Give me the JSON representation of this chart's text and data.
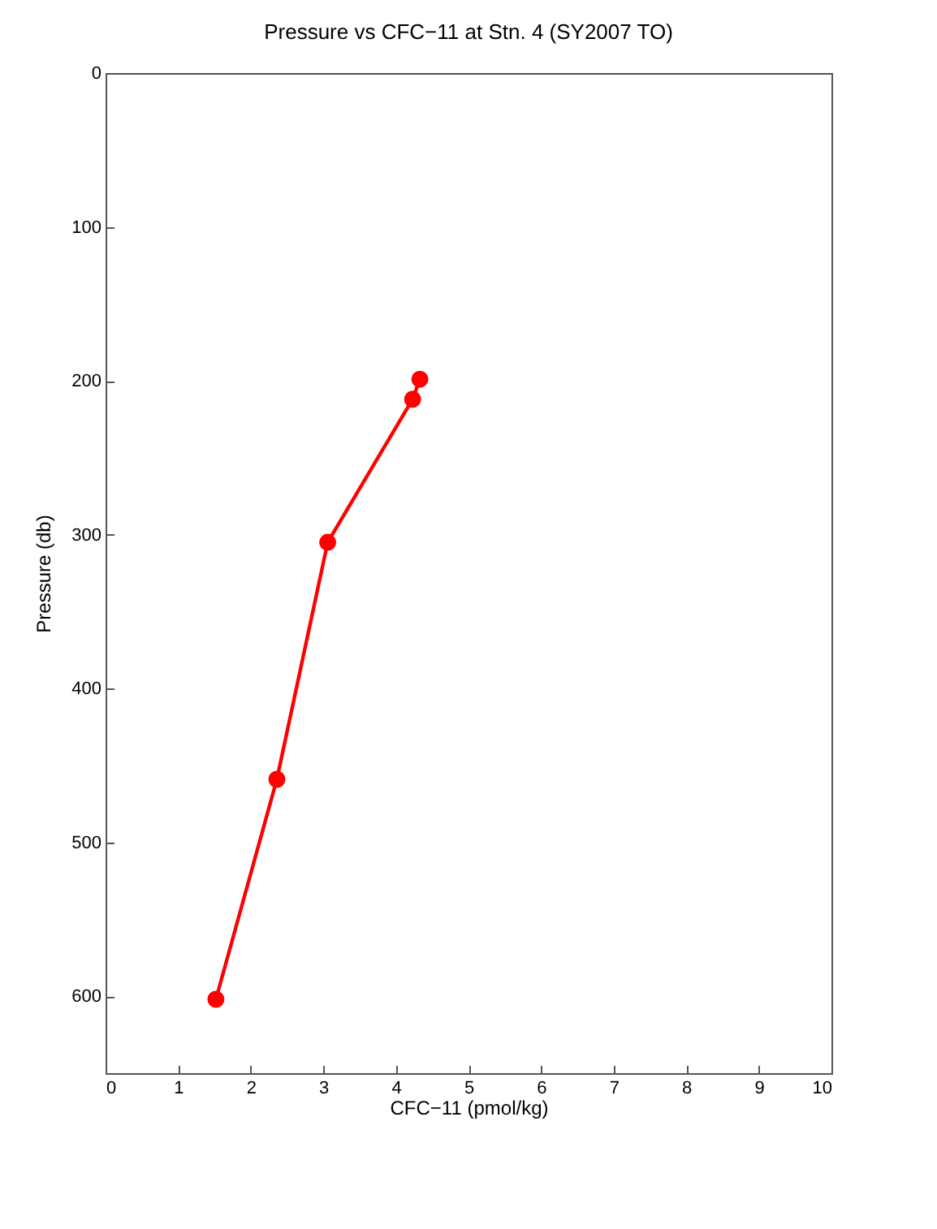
{
  "chart_data": {
    "type": "line",
    "title": "Pressure vs CFC−11 at Stn. 4 (SY2007 TO)",
    "xlabel": "CFC−11 (pmol/kg)",
    "ylabel": "Pressure (db)",
    "x": [
      4.33,
      4.23,
      3.06,
      2.36,
      1.52
    ],
    "series": [
      {
        "color": "#ff0000",
        "values": [
          199,
          212,
          305,
          459,
          602
        ]
      }
    ],
    "xlim": [
      0,
      10
    ],
    "xticks": [
      0,
      1,
      2,
      3,
      4,
      5,
      6,
      7,
      8,
      9,
      10
    ],
    "ylim": [
      650,
      0
    ],
    "yticks": [
      0,
      100,
      200,
      300,
      400,
      500,
      600
    ],
    "marker": "circle",
    "line_style": "solid"
  }
}
